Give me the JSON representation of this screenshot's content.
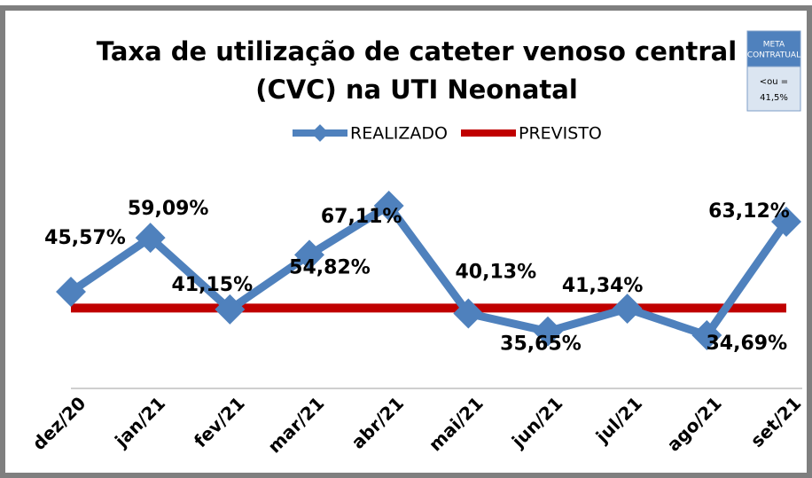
{
  "chart_data": {
    "type": "line",
    "title": [
      "Taxa de utilização de cateter venoso central",
      "(CVC) na UTI Neonatal"
    ],
    "categories": [
      "dez/20",
      "jan/21",
      "fev/21",
      "mar/21",
      "abr/21",
      "mai/21",
      "jun/21",
      "jul/21",
      "ago/21",
      "set/21"
    ],
    "series": [
      {
        "name": "REALIZADO",
        "color": "#4f81bd",
        "values": [
          45.57,
          59.09,
          41.15,
          54.82,
          67.11,
          40.13,
          35.65,
          41.34,
          34.69,
          63.12
        ],
        "value_labels": [
          "45,57%",
          "59,09%",
          "41,15%",
          "54,82%",
          "67,11%",
          "40,13%",
          "35,65%",
          "41,34%",
          "34,69%",
          "63,12%"
        ]
      },
      {
        "name": "PREVISTO",
        "color": "#c00000",
        "values": [
          41.5,
          41.5,
          41.5,
          41.5,
          41.5,
          41.5,
          41.5,
          41.5,
          41.5,
          41.5
        ]
      }
    ],
    "meta_box": {
      "title": [
        "META",
        "CONTRATUAL"
      ],
      "text": [
        "<ou =",
        "41,5%"
      ]
    }
  }
}
